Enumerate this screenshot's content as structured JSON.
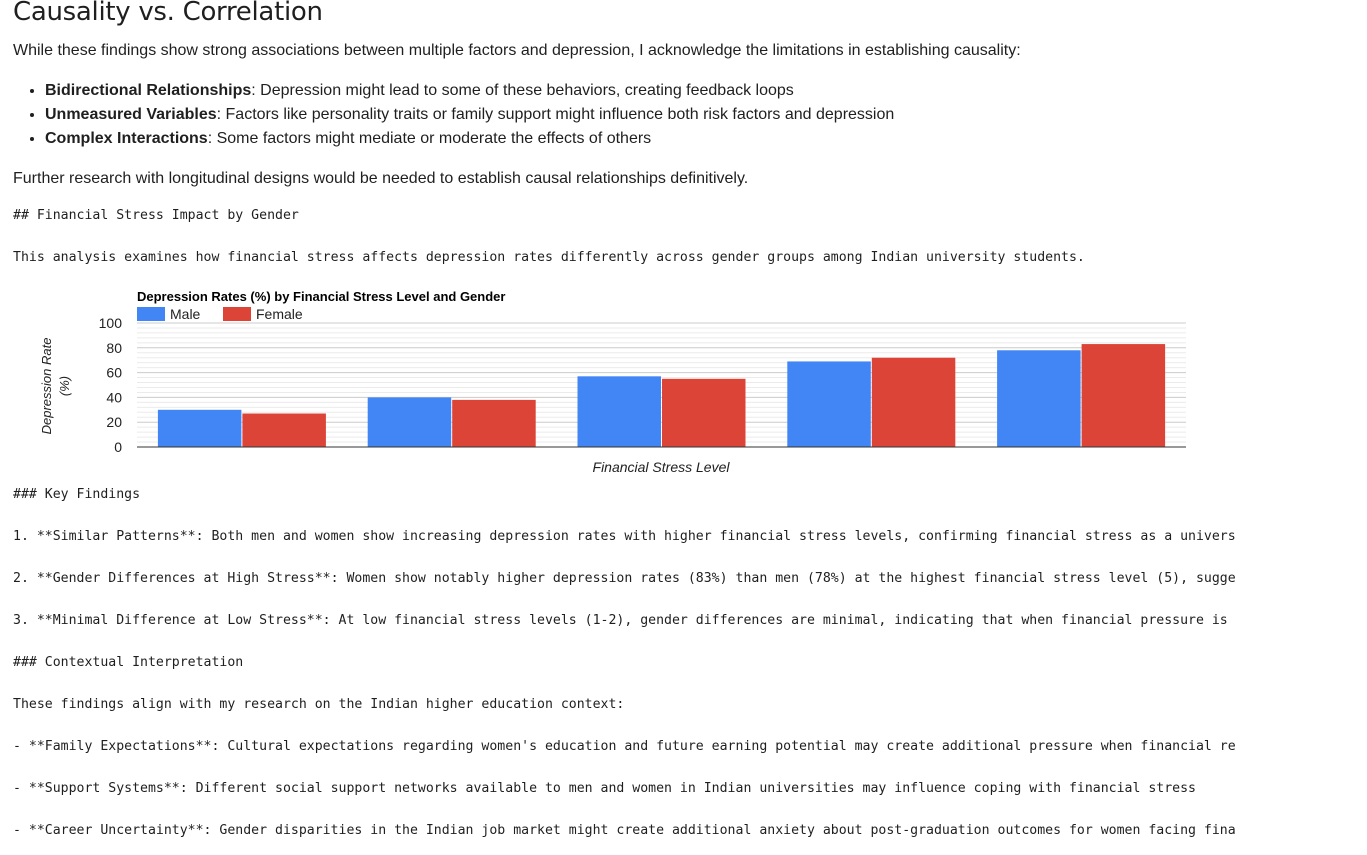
{
  "causality": {
    "heading": "Causality vs. Correlation",
    "intro": "While these findings show strong associations between multiple factors and depression, I acknowledge the limitations in establishing causality:",
    "bullets": [
      {
        "term": "Bidirectional Relationships",
        "text": ": Depression might lead to some of these behaviors, creating feedback loops"
      },
      {
        "term": "Unmeasured Variables",
        "text": ": Factors like personality traits or family support might influence both risk factors and depression"
      },
      {
        "term": "Complex Interactions",
        "text": ": Some factors might mediate or moderate the effects of others"
      }
    ],
    "further": "Further research with longitudinal designs would be needed to establish causal relationships definitively."
  },
  "raw_lines": {
    "section_heading": "## Financial Stress Impact by Gender",
    "section_intro": "This analysis examines how financial stress affects depression rates differently across gender groups among Indian university students.",
    "key_findings_heading": "### Key Findings",
    "finding_1": "1. **Similar Patterns**: Both men and women show increasing depression rates with higher financial stress levels, confirming financial stress as a univers",
    "finding_2": "2. **Gender Differences at High Stress**: Women show notably higher depression rates (83%) than men (78%) at the highest financial stress level (5), sugge",
    "finding_3": "3. **Minimal Difference at Low Stress**: At low financial stress levels (1-2), gender differences are minimal, indicating that when financial pressure is",
    "contextual_heading": "### Contextual Interpretation",
    "contextual_intro": "These findings align with my research on the Indian higher education context:",
    "bullet_family": "- **Family Expectations**: Cultural expectations regarding women's education and future earning potential may create additional pressure when financial re",
    "bullet_support": "- **Support Systems**: Different social support networks available to men and women in Indian universities may influence coping with financial stress",
    "bullet_career": "- **Career Uncertainty**: Gender disparities in the Indian job market might create additional anxiety about post-graduation outcomes for women facing fina"
  },
  "chart_data": {
    "type": "bar",
    "title": "Depression Rates (%) by Financial Stress Level and Gender",
    "xlabel": "Financial Stress Level",
    "ylabel_lines": [
      "Depression Rate",
      "(%)"
    ],
    "ylim": [
      0,
      100
    ],
    "yticks": [
      0,
      20,
      40,
      60,
      80,
      100
    ],
    "grid": true,
    "legend_position": "top-left",
    "categories": [
      "",
      "",
      "",
      "",
      ""
    ],
    "series": [
      {
        "name": "Male",
        "color": "#4285f4",
        "values": [
          30,
          40,
          57,
          69,
          78
        ]
      },
      {
        "name": "Female",
        "color": "#db4437",
        "values": [
          27,
          38,
          55,
          72,
          83
        ]
      }
    ]
  }
}
